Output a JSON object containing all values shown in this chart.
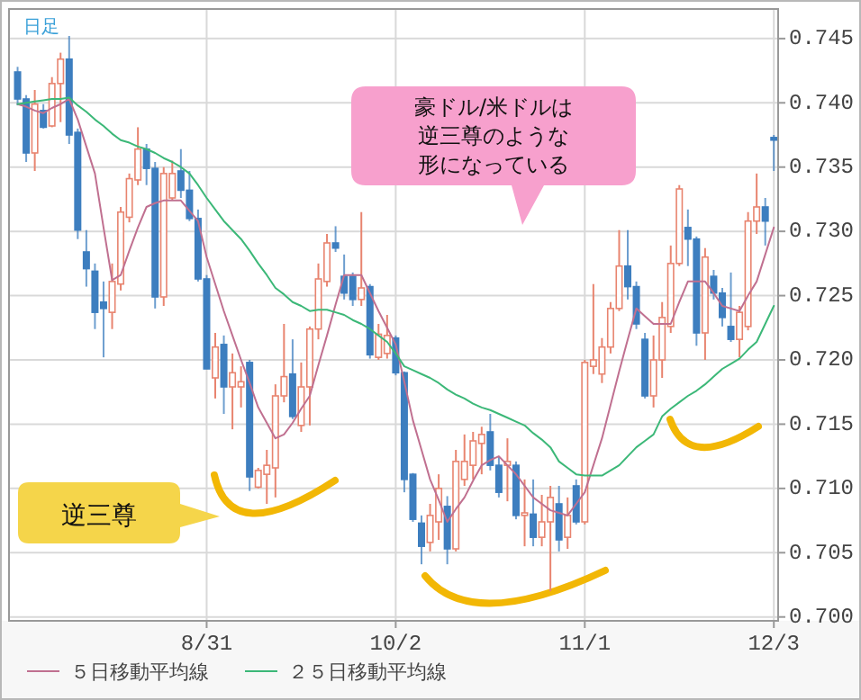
{
  "chart_data": {
    "type": "candlestick",
    "title": "日足",
    "categories": [
      null,
      null,
      null,
      null,
      null,
      null,
      null,
      null,
      null,
      null,
      null,
      null,
      null,
      null,
      null,
      null,
      null,
      null,
      null,
      null,
      null,
      null,
      "8/31",
      null,
      null,
      null,
      null,
      null,
      null,
      null,
      null,
      null,
      null,
      null,
      null,
      null,
      null,
      null,
      null,
      null,
      null,
      null,
      null,
      null,
      "10/2",
      null,
      null,
      null,
      null,
      null,
      null,
      null,
      null,
      null,
      null,
      null,
      null,
      null,
      null,
      null,
      null,
      null,
      null,
      null,
      null,
      null,
      "11/1",
      null,
      null,
      null,
      null,
      null,
      null,
      null,
      null,
      null,
      null,
      null,
      null,
      null,
      null,
      null,
      null,
      null,
      null,
      null,
      null,
      null,
      "12/3"
    ],
    "ylim": [
      0.6997,
      0.7473
    ],
    "yticks": [
      {
        "value": 0.7,
        "label": "0.700"
      },
      0.705,
      {
        "value": 0.71,
        "label": "0.710"
      },
      0.715,
      {
        "value": 0.72,
        "label": "0.720"
      },
      0.725,
      {
        "value": 0.73,
        "label": "0.730"
      },
      0.735,
      {
        "value": 0.74,
        "label": "0.740"
      },
      0.745
    ],
    "grid": true,
    "legend": "bottom",
    "ohlc": [
      [
        0.7424,
        0.7428,
        0.7398,
        0.7403
      ],
      [
        0.7403,
        0.7406,
        0.7354,
        0.7361
      ],
      [
        0.7361,
        0.741,
        0.7347,
        0.7399
      ],
      [
        0.7394,
        0.7399,
        0.738,
        0.7381
      ],
      [
        0.7382,
        0.742,
        0.7381,
        0.7415
      ],
      [
        0.7415,
        0.7439,
        0.7385,
        0.7434
      ],
      [
        0.7434,
        0.7452,
        0.7368,
        0.7375
      ],
      [
        0.7377,
        0.738,
        0.7294,
        0.7301
      ],
      [
        0.7284,
        0.7301,
        0.7257,
        0.7271
      ],
      [
        0.7269,
        0.7275,
        0.7224,
        0.7237
      ],
      [
        0.7245,
        0.7261,
        0.7202,
        0.724
      ],
      [
        0.7237,
        0.7275,
        0.7224,
        0.7261
      ],
      [
        0.7259,
        0.7319,
        0.7254,
        0.7315
      ],
      [
        0.7311,
        0.7345,
        0.7307,
        0.7341
      ],
      [
        0.734,
        0.7381,
        0.7336,
        0.7364
      ],
      [
        0.7364,
        0.7368,
        0.7336,
        0.7349
      ],
      [
        0.7349,
        0.7354,
        0.724,
        0.7249
      ],
      [
        0.7249,
        0.735,
        0.7242,
        0.7345
      ],
      [
        0.7326,
        0.7355,
        0.7324,
        0.7345
      ],
      [
        0.7347,
        0.7364,
        0.7326,
        0.7332
      ],
      [
        0.7332,
        0.7347,
        0.7308,
        0.731
      ],
      [
        0.731,
        0.7317,
        0.7261,
        0.7263
      ],
      [
        0.7263,
        0.7266,
        0.7193,
        0.7193
      ],
      [
        0.7186,
        0.7221,
        0.717,
        0.721
      ],
      [
        0.7212,
        0.7219,
        0.7158,
        0.7179
      ],
      [
        0.7179,
        0.7205,
        0.7146,
        0.719
      ],
      [
        0.7179,
        0.7195,
        0.7163,
        0.7183
      ],
      [
        0.7198,
        0.72,
        0.7098,
        0.7109
      ],
      [
        0.7101,
        0.7116,
        0.71,
        0.7114
      ],
      [
        0.7111,
        0.713,
        0.7088,
        0.7118
      ],
      [
        0.7116,
        0.7181,
        0.7093,
        0.7172
      ],
      [
        0.7172,
        0.7228,
        0.7167,
        0.7187
      ],
      [
        0.7189,
        0.7216,
        0.7154,
        0.7156
      ],
      [
        0.7149,
        0.7198,
        0.7144,
        0.7179
      ],
      [
        0.7179,
        0.7226,
        0.7149,
        0.7224
      ],
      [
        0.7224,
        0.7275,
        0.7216,
        0.7263
      ],
      [
        0.7261,
        0.7298,
        0.7257,
        0.7291
      ],
      [
        0.7291,
        0.7304,
        0.7284,
        0.7287
      ],
      [
        0.7265,
        0.7282,
        0.7247,
        0.7252
      ],
      [
        0.7265,
        0.7268,
        0.7242,
        0.7247
      ],
      [
        0.7247,
        0.7315,
        0.7242,
        0.7256
      ],
      [
        0.7257,
        0.7259,
        0.7201,
        0.7204
      ],
      [
        0.7202,
        0.7228,
        0.72,
        0.722
      ],
      [
        0.7205,
        0.7235,
        0.7201,
        0.7219
      ],
      [
        0.7217,
        0.7219,
        0.7188,
        0.719
      ],
      [
        0.719,
        0.7191,
        0.7097,
        0.7107
      ],
      [
        0.7111,
        0.7112,
        0.7074,
        0.7076
      ],
      [
        0.7073,
        0.7079,
        0.7041,
        0.7055
      ],
      [
        0.7058,
        0.7088,
        0.7051,
        0.7079
      ],
      [
        0.7074,
        0.7111,
        0.706,
        0.71
      ],
      [
        0.7086,
        0.7094,
        0.7041,
        0.7053
      ],
      [
        0.7053,
        0.713,
        0.7051,
        0.7121
      ],
      [
        0.7107,
        0.7142,
        0.7102,
        0.7121
      ],
      [
        0.7118,
        0.7144,
        0.7107,
        0.7137
      ],
      [
        0.7135,
        0.7148,
        0.7111,
        0.7142
      ],
      [
        0.7144,
        0.7158,
        0.7114,
        0.7118
      ],
      [
        0.7118,
        0.7125,
        0.7093,
        0.7097
      ],
      [
        0.7118,
        0.7139,
        0.709,
        0.7121
      ],
      [
        0.7118,
        0.7121,
        0.7076,
        0.7079
      ],
      [
        0.7079,
        0.7107,
        0.7055,
        0.7081
      ],
      [
        0.708,
        0.7107,
        0.7055,
        0.7062
      ],
      [
        0.7062,
        0.7095,
        0.7055,
        0.7074
      ],
      [
        0.7074,
        0.7102,
        0.702,
        0.7093
      ],
      [
        0.7088,
        0.7102,
        0.7051,
        0.706
      ],
      [
        0.7062,
        0.7093,
        0.7053,
        0.7079
      ],
      [
        0.7102,
        0.7107,
        0.7072,
        0.7074
      ],
      [
        0.7074,
        0.72,
        0.7072,
        0.7198
      ],
      [
        0.7195,
        0.7259,
        0.7189,
        0.72
      ],
      [
        0.7189,
        0.7217,
        0.7182,
        0.721
      ],
      [
        0.721,
        0.7245,
        0.7205,
        0.724
      ],
      [
        0.724,
        0.7301,
        0.7238,
        0.7273
      ],
      [
        0.7273,
        0.7301,
        0.7247,
        0.7257
      ],
      [
        0.7257,
        0.7261,
        0.7224,
        0.7228
      ],
      [
        0.7216,
        0.7221,
        0.717,
        0.7172
      ],
      [
        0.7172,
        0.7219,
        0.7163,
        0.72
      ],
      [
        0.72,
        0.7245,
        0.7186,
        0.7233
      ],
      [
        0.7226,
        0.7289,
        0.7221,
        0.7275
      ],
      [
        0.7275,
        0.7336,
        0.7273,
        0.7333
      ],
      [
        0.7303,
        0.7317,
        0.7273,
        0.7294
      ],
      [
        0.7294,
        0.7296,
        0.7211,
        0.7221
      ],
      [
        0.7221,
        0.7287,
        0.72,
        0.728
      ],
      [
        0.7265,
        0.727,
        0.7247,
        0.7252
      ],
      [
        0.7252,
        0.7256,
        0.7226,
        0.7233
      ],
      [
        0.7226,
        0.7268,
        0.7214,
        0.7216
      ],
      [
        0.7216,
        0.7242,
        0.7202,
        0.7237
      ],
      [
        0.7226,
        0.7315,
        0.7223,
        0.7308
      ],
      [
        0.7308,
        0.7345,
        0.7298,
        0.7319
      ],
      [
        0.7319,
        0.7326,
        0.7289,
        0.7308
      ],
      [
        0.7373,
        0.7375,
        0.7347,
        0.7371
      ]
    ],
    "colors": [
      "#3d7ebf",
      "#3d7ebf",
      "#e8846f",
      "#3d7ebf",
      "#e8846f",
      "#e8846f",
      "#3d7ebf",
      "#3d7ebf",
      "#3d7ebf",
      "#3d7ebf",
      "#3d7ebf",
      "#e8846f",
      "#e8846f",
      "#e8846f",
      "#e8846f",
      "#3d7ebf",
      "#3d7ebf",
      "#e8846f",
      "#e8846f",
      "#3d7ebf",
      "#3d7ebf",
      "#3d7ebf",
      "#3d7ebf",
      "#e8846f",
      "#3d7ebf",
      "#e8846f",
      "#e8846f",
      "#3d7ebf",
      "#e8846f",
      "#e8846f",
      "#e8846f",
      "#e8846f",
      "#3d7ebf",
      "#e8846f",
      "#e8846f",
      "#e8846f",
      "#e8846f",
      "#3d7ebf",
      "#3d7ebf",
      "#3d7ebf",
      "#e8846f",
      "#3d7ebf",
      "#e8846f",
      "#e8846f",
      "#3d7ebf",
      "#3d7ebf",
      "#3d7ebf",
      "#3d7ebf",
      "#e8846f",
      "#e8846f",
      "#3d7ebf",
      "#e8846f",
      "#e8846f",
      "#e8846f",
      "#e8846f",
      "#3d7ebf",
      "#3d7ebf",
      "#e8846f",
      "#3d7ebf",
      "#e8846f",
      "#3d7ebf",
      "#e8846f",
      "#e8846f",
      "#3d7ebf",
      "#e8846f",
      "#3d7ebf",
      "#e8846f",
      "#e8846f",
      "#e8846f",
      "#e8846f",
      "#e8846f",
      "#3d7ebf",
      "#3d7ebf",
      "#3d7ebf",
      "#e8846f",
      "#e8846f",
      "#e8846f",
      "#e8846f",
      "#3d7ebf",
      "#3d7ebf",
      "#e8846f",
      "#3d7ebf",
      "#3d7ebf",
      "#3d7ebf",
      "#e8846f",
      "#e8846f",
      "#e8846f",
      "#3d7ebf",
      "#3d7ebf"
    ],
    "series": [
      {
        "name": "５日移動平均線",
        "type": "line",
        "color": "#c07090",
        "values": [
          0.7399,
          0.7397,
          0.7394,
          0.7392,
          0.7396,
          0.7399,
          0.7403,
          0.7387,
          0.7366,
          0.7345,
          0.7303,
          0.7262,
          0.7266,
          0.7285,
          0.7303,
          0.7319,
          0.7322,
          0.7324,
          0.7324,
          0.7324,
          0.7316,
          0.7308,
          0.728,
          0.7259,
          0.7238,
          0.7219,
          0.72,
          0.7182,
          0.7163,
          0.7151,
          0.7139,
          0.7142,
          0.7151,
          0.7162,
          0.7172,
          0.7196,
          0.7219,
          0.7243,
          0.7266,
          0.7266,
          0.7266,
          0.7252,
          0.7238,
          0.7225,
          0.7212,
          0.7183,
          0.7153,
          0.713,
          0.7107,
          0.7091,
          0.7074,
          0.7084,
          0.7093,
          0.7106,
          0.7118,
          0.7122,
          0.7125,
          0.7118,
          0.7111,
          0.7102,
          0.7093,
          0.7088,
          0.7083,
          0.7081,
          0.7079,
          0.7088,
          0.7097,
          0.7118,
          0.7139,
          0.7165,
          0.7191,
          0.7216,
          0.724,
          0.7234,
          0.7228,
          0.7228,
          0.7228,
          0.7245,
          0.7261,
          0.7261,
          0.7261,
          0.7252,
          0.7242,
          0.724,
          0.7238,
          0.725,
          0.7261,
          0.7282,
          0.7303
        ]
      },
      {
        "name": "２５日移動平均線",
        "type": "line",
        "color": "#3cb878",
        "values": [
          0.7399,
          0.74,
          0.7401,
          0.7402,
          0.7403,
          0.7403,
          0.7404,
          0.7398,
          0.7393,
          0.7387,
          0.7382,
          0.7376,
          0.7371,
          0.7369,
          0.7366,
          0.7364,
          0.7361,
          0.7357,
          0.7354,
          0.735,
          0.7345,
          0.7336,
          0.7326,
          0.7317,
          0.7308,
          0.7301,
          0.7294,
          0.7285,
          0.7275,
          0.7266,
          0.7256,
          0.7251,
          0.7245,
          0.7242,
          0.7238,
          0.7239,
          0.7239,
          0.7237,
          0.7235,
          0.7231,
          0.7228,
          0.7224,
          0.7219,
          0.7214,
          0.7205,
          0.7195,
          0.7192,
          0.7189,
          0.7186,
          0.7182,
          0.7177,
          0.7173,
          0.717,
          0.7166,
          0.7163,
          0.7161,
          0.7158,
          0.7155,
          0.7152,
          0.7149,
          0.7143,
          0.7138,
          0.7132,
          0.7121,
          0.7116,
          0.7111,
          0.711,
          0.711,
          0.711,
          0.7114,
          0.7118,
          0.7125,
          0.7132,
          0.7137,
          0.7142,
          0.7156,
          0.7162,
          0.7167,
          0.7172,
          0.7176,
          0.7181,
          0.7187,
          0.7193,
          0.7197,
          0.7201,
          0.7208,
          0.7214,
          0.7228,
          0.7242
        ]
      }
    ],
    "annotations": [
      "豪ドル/米ドルは逆三尊のような形になっている",
      "逆三尊"
    ]
  }
}
